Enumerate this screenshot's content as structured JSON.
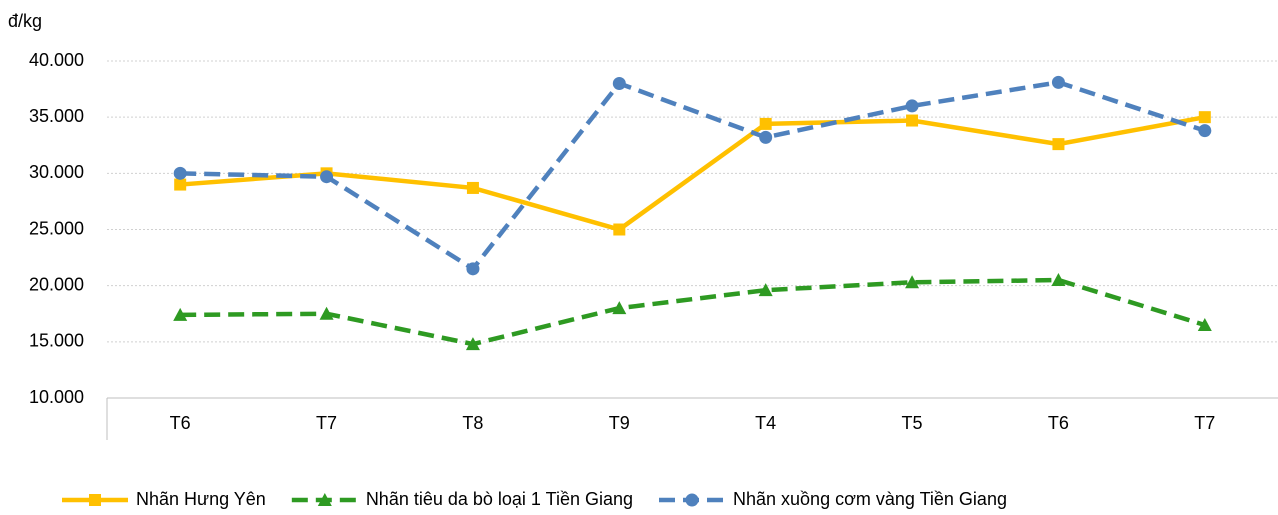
{
  "chart_data": {
    "type": "line",
    "y_unit_label": "đ/kg",
    "categories": [
      "T6",
      "T7",
      "T8",
      "T9",
      "T4",
      "T5",
      "T6",
      "T7"
    ],
    "series": [
      {
        "name": "Nhãn Hưng Yên",
        "color": "#ffc000",
        "marker": "square",
        "dash": "solid",
        "values": [
          29000,
          30000,
          28700,
          25000,
          34400,
          34700,
          32600,
          35000
        ]
      },
      {
        "name": "Nhãn tiêu da bò loại 1 Tiền Giang",
        "color": "#2e9a22",
        "marker": "triangle",
        "dash": "dashed",
        "values": [
          17400,
          17500,
          14800,
          18000,
          19600,
          20300,
          20500,
          16500
        ]
      },
      {
        "name": "Nhãn xuồng cơm vàng Tiền Giang",
        "color": "#4f81bd",
        "marker": "circle",
        "dash": "dashed",
        "values": [
          30000,
          29700,
          21500,
          38000,
          33200,
          36000,
          38100,
          33800
        ]
      }
    ],
    "ylim": [
      10000,
      40000
    ],
    "yticks": [
      {
        "value": 10000,
        "label": "10.000"
      },
      {
        "value": 15000,
        "label": "15.000"
      },
      {
        "value": 20000,
        "label": "20.000"
      },
      {
        "value": 25000,
        "label": "25.000"
      },
      {
        "value": 30000,
        "label": "30.000"
      },
      {
        "value": 35000,
        "label": "35.000"
      },
      {
        "value": 40000,
        "label": "40.000"
      }
    ],
    "grid": true,
    "legend": "bottom"
  }
}
